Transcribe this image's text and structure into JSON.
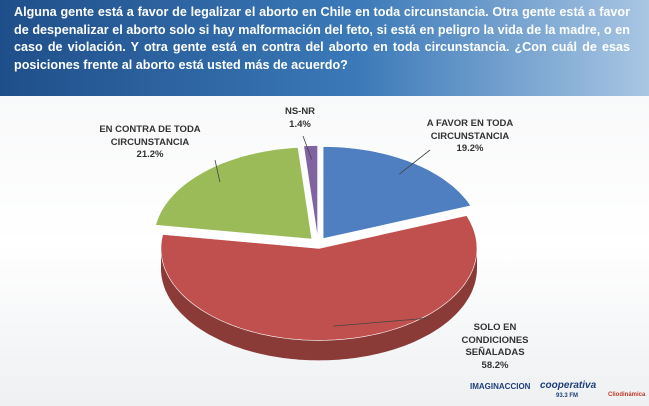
{
  "chart_data": {
    "type": "pie3d",
    "title": "Alguna gente está a favor de legalizar el aborto en Chile en toda circunstancia. Otra gente está a favor de despenalizar el aborto solo si hay malformación del feto, si está en peligro la vida de la madre, o en caso de violación. Y otra gente está en contra del aborto en toda circunstancia. ¿Con cuál de esas posiciones frente al aborto está usted más de acuerdo?",
    "categories": [
      "A FAVOR EN TODA CIRCUNSTANCIA",
      "SOLO EN CONDICIONES SEÑALADAS",
      "EN CONTRA DE TODA CIRCUNSTANCIA",
      "NS-NR"
    ],
    "values": [
      19.2,
      58.2,
      21.2,
      1.4
    ],
    "value_labels": [
      "19.2%",
      "58.2%",
      "21.2%",
      "1.4%"
    ],
    "colors": [
      "#4f7fc0",
      "#c0504d",
      "#9bbb59",
      "#8064a2"
    ]
  },
  "logos": [
    "IMAGINACCION",
    "cooperativa",
    "93.3 FM",
    "Cliodinámica"
  ]
}
